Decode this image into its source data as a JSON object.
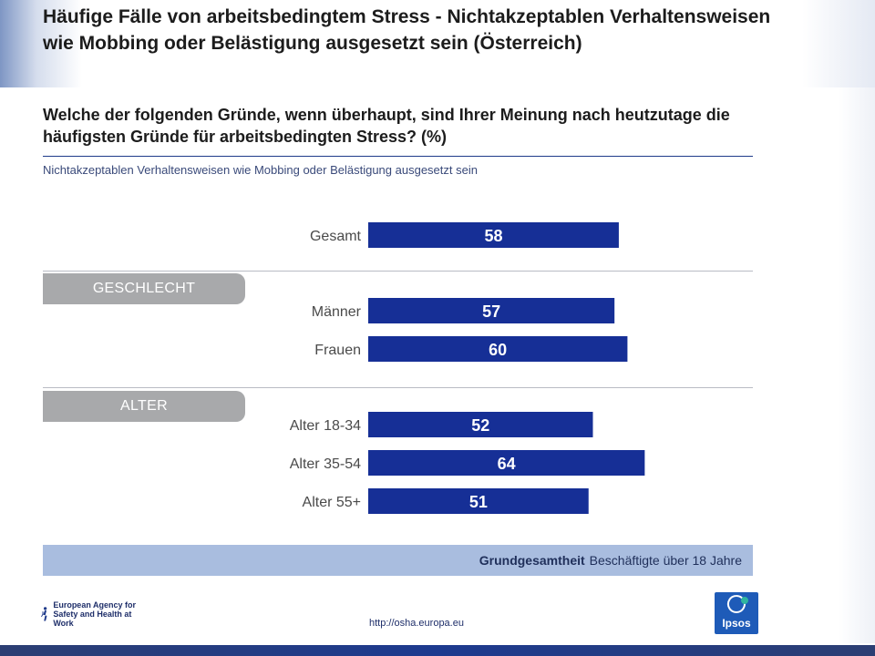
{
  "title": "Häufige Fälle von arbeitsbedingtem Stress - Nichtakzeptablen Verhaltensweisen wie Mobbing oder Belästigung ausgesetzt sein (Österreich)",
  "question": "Welche der folgenden Gründe, wenn überhaupt, sind Ihrer Meinung nach heutzutage die häufigsten Gründe für arbeitsbedingten Stress? (%)",
  "subtitle": "Nichtakzeptablen Verhaltensweisen wie Mobbing oder Belästigung ausgesetzt sein",
  "sections": {
    "gender": "GESCHLECHT",
    "age": "ALTER"
  },
  "footer": {
    "base_label": "Grundgesamtheit",
    "base_text": "Beschäftigte über 18 Jahre"
  },
  "url": "http://osha.europa.eu",
  "logos": {
    "osha": "European Agency for Safety and Health at Work",
    "ipsos": "Ipsos"
  },
  "colors": {
    "bar": "#162f96",
    "section_tab": "#a8a9ab",
    "footer_bar": "#a9bddf"
  },
  "chart_data": {
    "type": "bar",
    "orientation": "horizontal",
    "categories": [
      "Gesamt",
      "Männer",
      "Frauen",
      "Alter 18-34",
      "Alter 35-54",
      "Alter 55+"
    ],
    "values": [
      58,
      57,
      60,
      52,
      64,
      51
    ],
    "groups": [
      "",
      "GESCHLECHT",
      "GESCHLECHT",
      "ALTER",
      "ALTER",
      "ALTER"
    ],
    "xlim": [
      0,
      100
    ],
    "data_labels": true
  }
}
